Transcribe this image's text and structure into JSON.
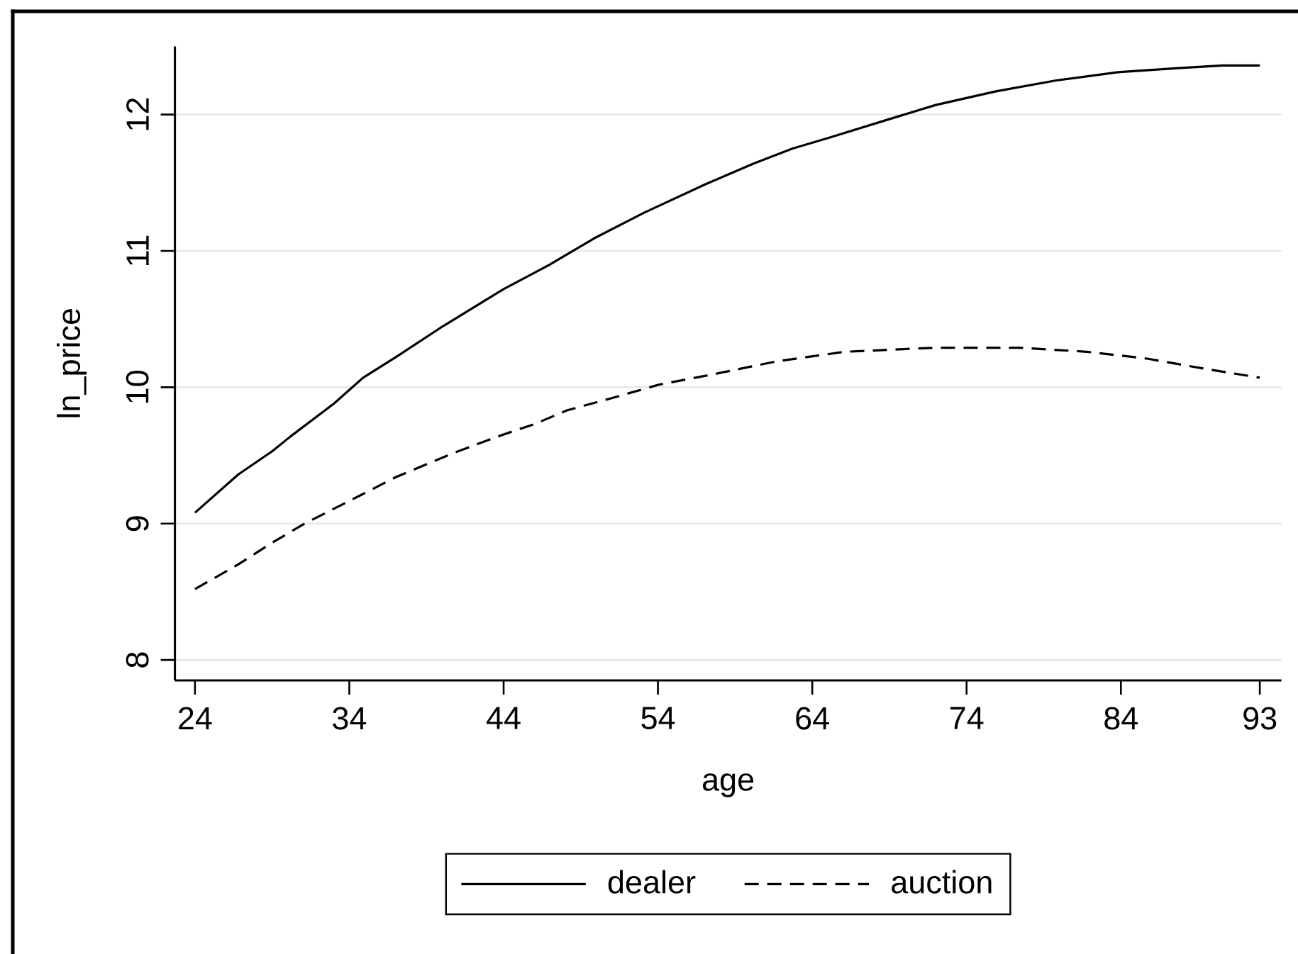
{
  "chart_data": {
    "type": "line",
    "xlabel": "age",
    "ylabel": "ln_price",
    "series": [
      {
        "name": "dealer",
        "color": "#000000",
        "line_style": "solid",
        "x": [
          24,
          26.8,
          29.0,
          30.2,
          33.0,
          34.9,
          37.0,
          40.1,
          44.0,
          47.0,
          50.0,
          53.1,
          57.1,
          60.2,
          62.7,
          65.1,
          69.1,
          72.0,
          75.9,
          79.8,
          83.8,
          87.7,
          90.6,
          93
        ],
        "values": [
          9.08,
          9.36,
          9.53,
          9.64,
          9.88,
          10.07,
          10.22,
          10.45,
          10.72,
          10.9,
          11.1,
          11.28,
          11.49,
          11.64,
          11.75,
          11.83,
          11.97,
          12.07,
          12.17,
          12.25,
          12.31,
          12.34,
          12.36,
          12.36
        ]
      },
      {
        "name": "auction",
        "color": "#000000",
        "line_style": "dashed",
        "x": [
          24,
          26.8,
          29.0,
          31.1,
          33.9,
          37.0,
          40.8,
          43.9,
          46.0,
          48.1,
          51.0,
          54.1,
          57.8,
          61.7,
          66.1,
          72.0,
          77.4,
          81.8,
          85.7,
          89.2,
          93
        ],
        "values": [
          8.52,
          8.7,
          8.86,
          9.0,
          9.16,
          9.34,
          9.52,
          9.65,
          9.73,
          9.83,
          9.92,
          10.02,
          10.1,
          10.19,
          10.26,
          10.29,
          10.29,
          10.26,
          10.21,
          10.14,
          10.07
        ]
      }
    ],
    "xlim": [
      22.7,
      94.4
    ],
    "xticks": [
      24,
      34,
      44,
      54,
      64,
      74,
      84,
      93
    ],
    "ylim": [
      7.85,
      12.5
    ],
    "yticks": [
      8,
      9,
      10,
      11,
      12
    ],
    "grid": "y",
    "legend": "bottom"
  }
}
